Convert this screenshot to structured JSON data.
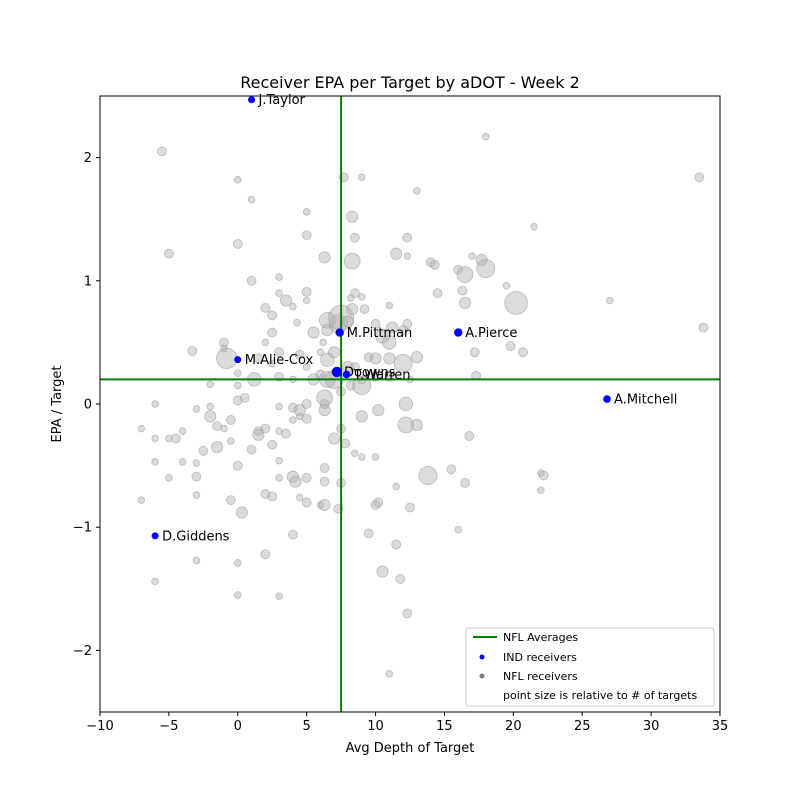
{
  "chart_data": {
    "type": "scatter",
    "title": "Receiver EPA per Target by aDOT - Week 2",
    "xlabel": "Avg Depth of Target",
    "ylabel": "EPA / Target",
    "xlim": [
      -10,
      35
    ],
    "ylim": [
      -2.5,
      2.5
    ],
    "xticks": [
      -10,
      -5,
      0,
      5,
      10,
      15,
      20,
      25,
      30,
      35
    ],
    "yticks": [
      -2,
      -1,
      0,
      1,
      2
    ],
    "grid": false,
    "averages": {
      "x": 7.5,
      "y": 0.2
    },
    "colors": {
      "average": "#008000",
      "ind": "#0000ff",
      "nfl": "#b0b0b0"
    },
    "legend": {
      "placement": "lower-right",
      "entries": [
        "NFL Averages",
        "IND receivers",
        "NFL receivers",
        "point size is relative to # of targets"
      ]
    },
    "ind_receivers": [
      {
        "label": "J.Taylor",
        "x": 1.0,
        "y": 2.47,
        "targets": 2
      },
      {
        "label": "M.Pittman",
        "x": 7.4,
        "y": 0.58,
        "targets": 4
      },
      {
        "label": "A.Pierce",
        "x": 16.0,
        "y": 0.58,
        "targets": 4
      },
      {
        "label": "M.Alie-Cox",
        "x": 0.0,
        "y": 0.36,
        "targets": 2
      },
      {
        "label": "Doowns",
        "x": 7.2,
        "y": 0.26,
        "targets": 7
      },
      {
        "label": "T.Warren",
        "x": 7.9,
        "y": 0.24,
        "targets": 3
      },
      {
        "label": "A.Mitchell",
        "x": 26.8,
        "y": 0.04,
        "targets": 3
      },
      {
        "label": "D.Giddens",
        "x": -6.0,
        "y": -1.07,
        "targets": 2
      }
    ],
    "nfl_receivers": [
      [
        -5.5,
        2.05,
        2
      ],
      [
        -5,
        1.22,
        2
      ],
      [
        0,
        1.82,
        1
      ],
      [
        1,
        1.66,
        1
      ],
      [
        0,
        1.3,
        2
      ],
      [
        1,
        1.0,
        2
      ],
      [
        3,
        1.03,
        1
      ],
      [
        3,
        0.9,
        1
      ],
      [
        2,
        0.78,
        2
      ],
      [
        2.5,
        0.72,
        2
      ],
      [
        5,
        1.56,
        1
      ],
      [
        5,
        1.37,
        2
      ],
      [
        6.3,
        1.19,
        3
      ],
      [
        8.3,
        1.52,
        3
      ],
      [
        8.5,
        1.35,
        2
      ],
      [
        8.3,
        1.16,
        5
      ],
      [
        7.7,
        1.84,
        2
      ],
      [
        9,
        1.84,
        1
      ],
      [
        13,
        1.73,
        1
      ],
      [
        18,
        2.17,
        1
      ],
      [
        11.5,
        1.22,
        3
      ],
      [
        12.3,
        1.35,
        2
      ],
      [
        12.3,
        1.2,
        1
      ],
      [
        14,
        1.15,
        2
      ],
      [
        14.3,
        1.13,
        2
      ],
      [
        16,
        1.09,
        2
      ],
      [
        16.5,
        1.05,
        5
      ],
      [
        17,
        1.2,
        1
      ],
      [
        17.7,
        1.17,
        3
      ],
      [
        18,
        1.1,
        6
      ],
      [
        21.5,
        1.44,
        1
      ],
      [
        19.5,
        0.96,
        1
      ],
      [
        20.2,
        0.82,
        8
      ],
      [
        16.3,
        0.92,
        2
      ],
      [
        16.5,
        0.82,
        3
      ],
      [
        14.5,
        0.9,
        2
      ],
      [
        27,
        0.84,
        1
      ],
      [
        33.5,
        1.84,
        2
      ],
      [
        33.8,
        0.62,
        2
      ],
      [
        17.2,
        0.42,
        2
      ],
      [
        19.8,
        0.47,
        2
      ],
      [
        20.7,
        0.42,
        2
      ],
      [
        17.3,
        0.23,
        2
      ],
      [
        3.5,
        0.84,
        3
      ],
      [
        4,
        0.79,
        1
      ],
      [
        5,
        0.91,
        2
      ],
      [
        5,
        0.84,
        1
      ],
      [
        2.5,
        0.58,
        2
      ],
      [
        2,
        0.5,
        1
      ],
      [
        4.3,
        0.66,
        1
      ],
      [
        -1,
        0.5,
        2
      ],
      [
        -1,
        0.45,
        1
      ],
      [
        -3.3,
        0.43,
        2
      ],
      [
        -0.8,
        0.37,
        7
      ],
      [
        1.5,
        0.37,
        2
      ],
      [
        2.5,
        0.33,
        1
      ],
      [
        3,
        0.42,
        2
      ],
      [
        4.5,
        0.4,
        2
      ],
      [
        5.5,
        0.58,
        3
      ],
      [
        6.2,
        0.5,
        1
      ],
      [
        6.5,
        0.6,
        3
      ],
      [
        6.5,
        0.68,
        5
      ],
      [
        7.3,
        0.65,
        6
      ],
      [
        7.5,
        0.7,
        9
      ],
      [
        8,
        0.67,
        3
      ],
      [
        8.3,
        0.77,
        3
      ],
      [
        8.2,
        0.86,
        1
      ],
      [
        8.5,
        0.9,
        2
      ],
      [
        9,
        0.87,
        1
      ],
      [
        9.2,
        0.77,
        2
      ],
      [
        10,
        0.65,
        2
      ],
      [
        11,
        0.8,
        1
      ],
      [
        11.2,
        0.62,
        3
      ],
      [
        10.5,
        0.55,
        4
      ],
      [
        11,
        0.5,
        4
      ],
      [
        12.3,
        0.65,
        2
      ],
      [
        12,
        0.6,
        2
      ],
      [
        6,
        0.42,
        1
      ],
      [
        6.5,
        0.36,
        4
      ],
      [
        7,
        0.42,
        3
      ],
      [
        8,
        0.3,
        3
      ],
      [
        8.5,
        0.3,
        2
      ],
      [
        9,
        0.2,
        2
      ],
      [
        9.5,
        0.38,
        2
      ],
      [
        10,
        0.37,
        3
      ],
      [
        11,
        0.37,
        3
      ],
      [
        12,
        0.33,
        6
      ],
      [
        13,
        0.38,
        3
      ],
      [
        5,
        0.3,
        1
      ],
      [
        5.5,
        0.2,
        3
      ],
      [
        6,
        0.24,
        2
      ],
      [
        6.5,
        0.2,
        5
      ],
      [
        7,
        0.2,
        6
      ],
      [
        8.2,
        0.15,
        2
      ],
      [
        9,
        0.15,
        6
      ],
      [
        10,
        0.22,
        2
      ],
      [
        11,
        0.22,
        2
      ],
      [
        12.5,
        0.2,
        1
      ],
      [
        4,
        0.2,
        1
      ],
      [
        3,
        0.22,
        2
      ],
      [
        1.2,
        0.2,
        4
      ],
      [
        0,
        0.25,
        1
      ],
      [
        0,
        0.15,
        1
      ],
      [
        -2,
        0.16,
        1
      ],
      [
        0,
        0.03,
        2
      ],
      [
        0.5,
        0.05,
        2
      ],
      [
        3,
        -0.02,
        1
      ],
      [
        4,
        -0.03,
        2
      ],
      [
        4.5,
        -0.05,
        3
      ],
      [
        5,
        0,
        2
      ],
      [
        6.3,
        0.05,
        5
      ],
      [
        6.3,
        -0.05,
        3
      ],
      [
        6.3,
        0,
        2
      ],
      [
        7.5,
        0.1,
        2
      ],
      [
        9,
        -0.1,
        3
      ],
      [
        10.2,
        -0.05,
        3
      ],
      [
        12.2,
        0,
        4
      ],
      [
        12.2,
        -0.17,
        5
      ],
      [
        13,
        -0.17,
        3
      ],
      [
        16.8,
        -0.26,
        2
      ],
      [
        -3,
        -0.04,
        1
      ],
      [
        -2,
        -0.1,
        3
      ],
      [
        -2,
        -0.02,
        1
      ],
      [
        -1.5,
        -0.18,
        2
      ],
      [
        -1,
        -0.2,
        1
      ],
      [
        -0.5,
        -0.13,
        2
      ],
      [
        1.5,
        -0.22,
        2
      ],
      [
        1.5,
        -0.25,
        3
      ],
      [
        2,
        -0.2,
        2
      ],
      [
        3,
        -0.22,
        1
      ],
      [
        3.5,
        -0.24,
        2
      ],
      [
        4,
        -0.13,
        1
      ],
      [
        4.5,
        -0.1,
        1
      ],
      [
        5,
        -0.12,
        2
      ],
      [
        7,
        -0.28,
        3
      ],
      [
        7.5,
        -0.2,
        2
      ],
      [
        7.8,
        -0.32,
        2
      ],
      [
        8.5,
        -0.4,
        1
      ],
      [
        9,
        -0.43,
        1
      ],
      [
        10,
        -0.43,
        1
      ],
      [
        -7,
        -0.2,
        1
      ],
      [
        -6,
        -0.28,
        1
      ],
      [
        -5,
        -0.28,
        1
      ],
      [
        -4.5,
        -0.28,
        2
      ],
      [
        -4,
        -0.22,
        1
      ],
      [
        -2.5,
        -0.38,
        2
      ],
      [
        -1.5,
        -0.35,
        3
      ],
      [
        -0.5,
        -0.3,
        1
      ],
      [
        0,
        -0.5,
        2
      ],
      [
        1,
        -0.37,
        2
      ],
      [
        2.5,
        -0.33,
        2
      ],
      [
        3,
        -0.46,
        1
      ],
      [
        6.3,
        -0.52,
        2
      ],
      [
        7.5,
        -0.64,
        2
      ],
      [
        6.3,
        -0.63,
        2
      ],
      [
        5,
        -0.6,
        2
      ],
      [
        4,
        -0.59,
        3
      ],
      [
        4.2,
        -0.63,
        3
      ],
      [
        3,
        -0.6,
        1
      ],
      [
        2,
        -0.73,
        2
      ],
      [
        2.5,
        -0.75,
        2
      ],
      [
        0.3,
        -0.88,
        3
      ],
      [
        -3,
        -0.59,
        2
      ],
      [
        -5,
        -0.6,
        1
      ],
      [
        -6,
        -0.47,
        1
      ],
      [
        -4,
        -0.47,
        1
      ],
      [
        -3,
        -0.48,
        1
      ],
      [
        -7,
        -0.78,
        1
      ],
      [
        -3,
        -0.74,
        1
      ],
      [
        -0.5,
        -0.78,
        2
      ],
      [
        4.5,
        -0.76,
        1
      ],
      [
        5,
        -0.8,
        2
      ],
      [
        6,
        -0.82,
        1
      ],
      [
        6.3,
        -0.82,
        3
      ],
      [
        7.3,
        -0.85,
        2
      ],
      [
        10,
        -0.82,
        2
      ],
      [
        10.2,
        -0.8,
        2
      ],
      [
        11.5,
        -0.67,
        1
      ],
      [
        12.5,
        -0.84,
        2
      ],
      [
        13.8,
        -0.58,
        6
      ],
      [
        15.5,
        -0.53,
        2
      ],
      [
        16.5,
        -0.64,
        2
      ],
      [
        22,
        -0.56,
        1
      ],
      [
        22.2,
        -0.58,
        2
      ],
      [
        22,
        -0.7,
        1
      ],
      [
        9.5,
        -1.05,
        2
      ],
      [
        11.5,
        -1.14,
        2
      ],
      [
        16,
        -1.02,
        1
      ],
      [
        -6,
        -1.44,
        1
      ],
      [
        -3,
        -1.27,
        1
      ],
      [
        0,
        -1.29,
        1
      ],
      [
        0,
        -1.55,
        1
      ],
      [
        2,
        -1.22,
        2
      ],
      [
        3,
        -1.56,
        1
      ],
      [
        4,
        -1.06,
        2
      ],
      [
        10.5,
        -1.36,
        3
      ],
      [
        11.8,
        -1.42,
        2
      ],
      [
        12.3,
        -1.7,
        2
      ],
      [
        11,
        -2.19,
        1
      ],
      [
        -6,
        0,
        1
      ]
    ]
  }
}
